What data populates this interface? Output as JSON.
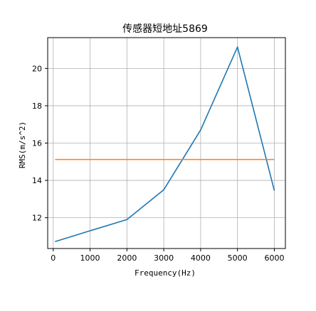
{
  "chart_data": {
    "type": "line",
    "title": "传感器短地址5869",
    "xlabel": "Frequency(Hz)",
    "ylabel": "RMS(m/s^2)",
    "xlim": [
      -150,
      6300
    ],
    "ylim": [
      10.35,
      21.65
    ],
    "xticks": [
      0,
      1000,
      2000,
      3000,
      4000,
      5000,
      6000
    ],
    "yticks": [
      12,
      14,
      16,
      18,
      20
    ],
    "grid": true,
    "series": [
      {
        "color": "#1f77b4",
        "x": [
          50,
          1000,
          2000,
          3000,
          4000,
          5000,
          6000
        ],
        "y": [
          10.72,
          11.3,
          11.9,
          13.5,
          16.7,
          21.15,
          13.45
        ]
      },
      {
        "color": "#ff7f0e",
        "x": [
          50,
          6000
        ],
        "y": [
          15.12,
          15.12
        ]
      }
    ]
  }
}
